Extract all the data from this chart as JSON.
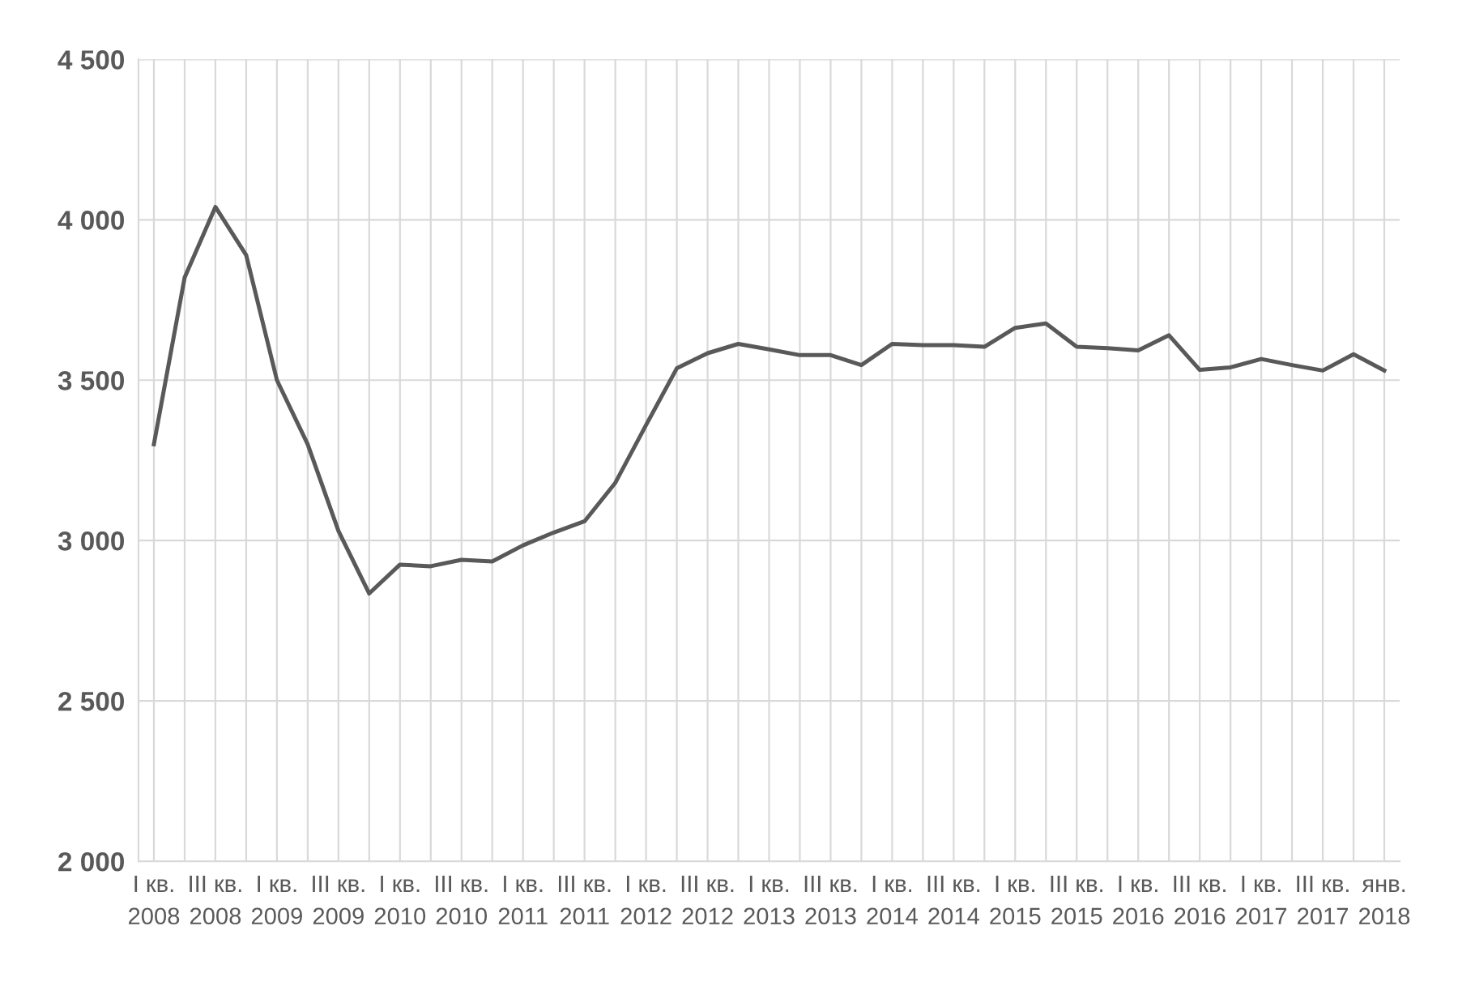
{
  "chart_data": {
    "type": "line",
    "categories": [
      "I кв.\n2008",
      null,
      "III кв.\n2008",
      null,
      "I кв.\n2009",
      null,
      "III кв.\n2009",
      null,
      "I кв.\n2010",
      null,
      "III кв.\n2010",
      null,
      "I кв.\n2011",
      null,
      "III кв.\n2011",
      null,
      "I кв.\n2012",
      null,
      "III кв.\n2012",
      null,
      "I кв.\n2013",
      null,
      "III кв.\n2013",
      null,
      "I кв.\n2014",
      null,
      "III кв.\n2014",
      null,
      "I кв.\n2015",
      null,
      "III кв.\n2015",
      null,
      "I кв.\n2016",
      null,
      "III кв.\n2016",
      null,
      "I кв.\n2017",
      null,
      "III кв.\n2017",
      null,
      "янв.\n2018"
    ],
    "series": [
      {
        "color": "#595959",
        "values": [
          3300,
          3820,
          4040,
          3890,
          3500,
          3300,
          3030,
          2835,
          2925,
          2920,
          2940,
          2935,
          2985,
          3025,
          3060,
          3180,
          3360,
          3537,
          3584,
          3613,
          3596,
          3578,
          3578,
          3547,
          3613,
          3609,
          3609,
          3604,
          3663,
          3677,
          3604,
          3600,
          3593,
          3640,
          3532,
          3540,
          3566,
          3547,
          3530,
          3581,
          3530
        ]
      }
    ],
    "ylim": [
      2000,
      4500
    ],
    "yticks": [
      {
        "value": 2000,
        "label": "2 000"
      },
      {
        "value": 2500,
        "label": "2 500"
      },
      {
        "value": 3000,
        "label": "3 000"
      },
      {
        "value": 3500,
        "label": "3 500"
      },
      {
        "value": 4000,
        "label": "4 000"
      },
      {
        "value": 4500,
        "label": "4 500"
      }
    ],
    "grid": true,
    "marker": "none",
    "line_style": "solid"
  }
}
